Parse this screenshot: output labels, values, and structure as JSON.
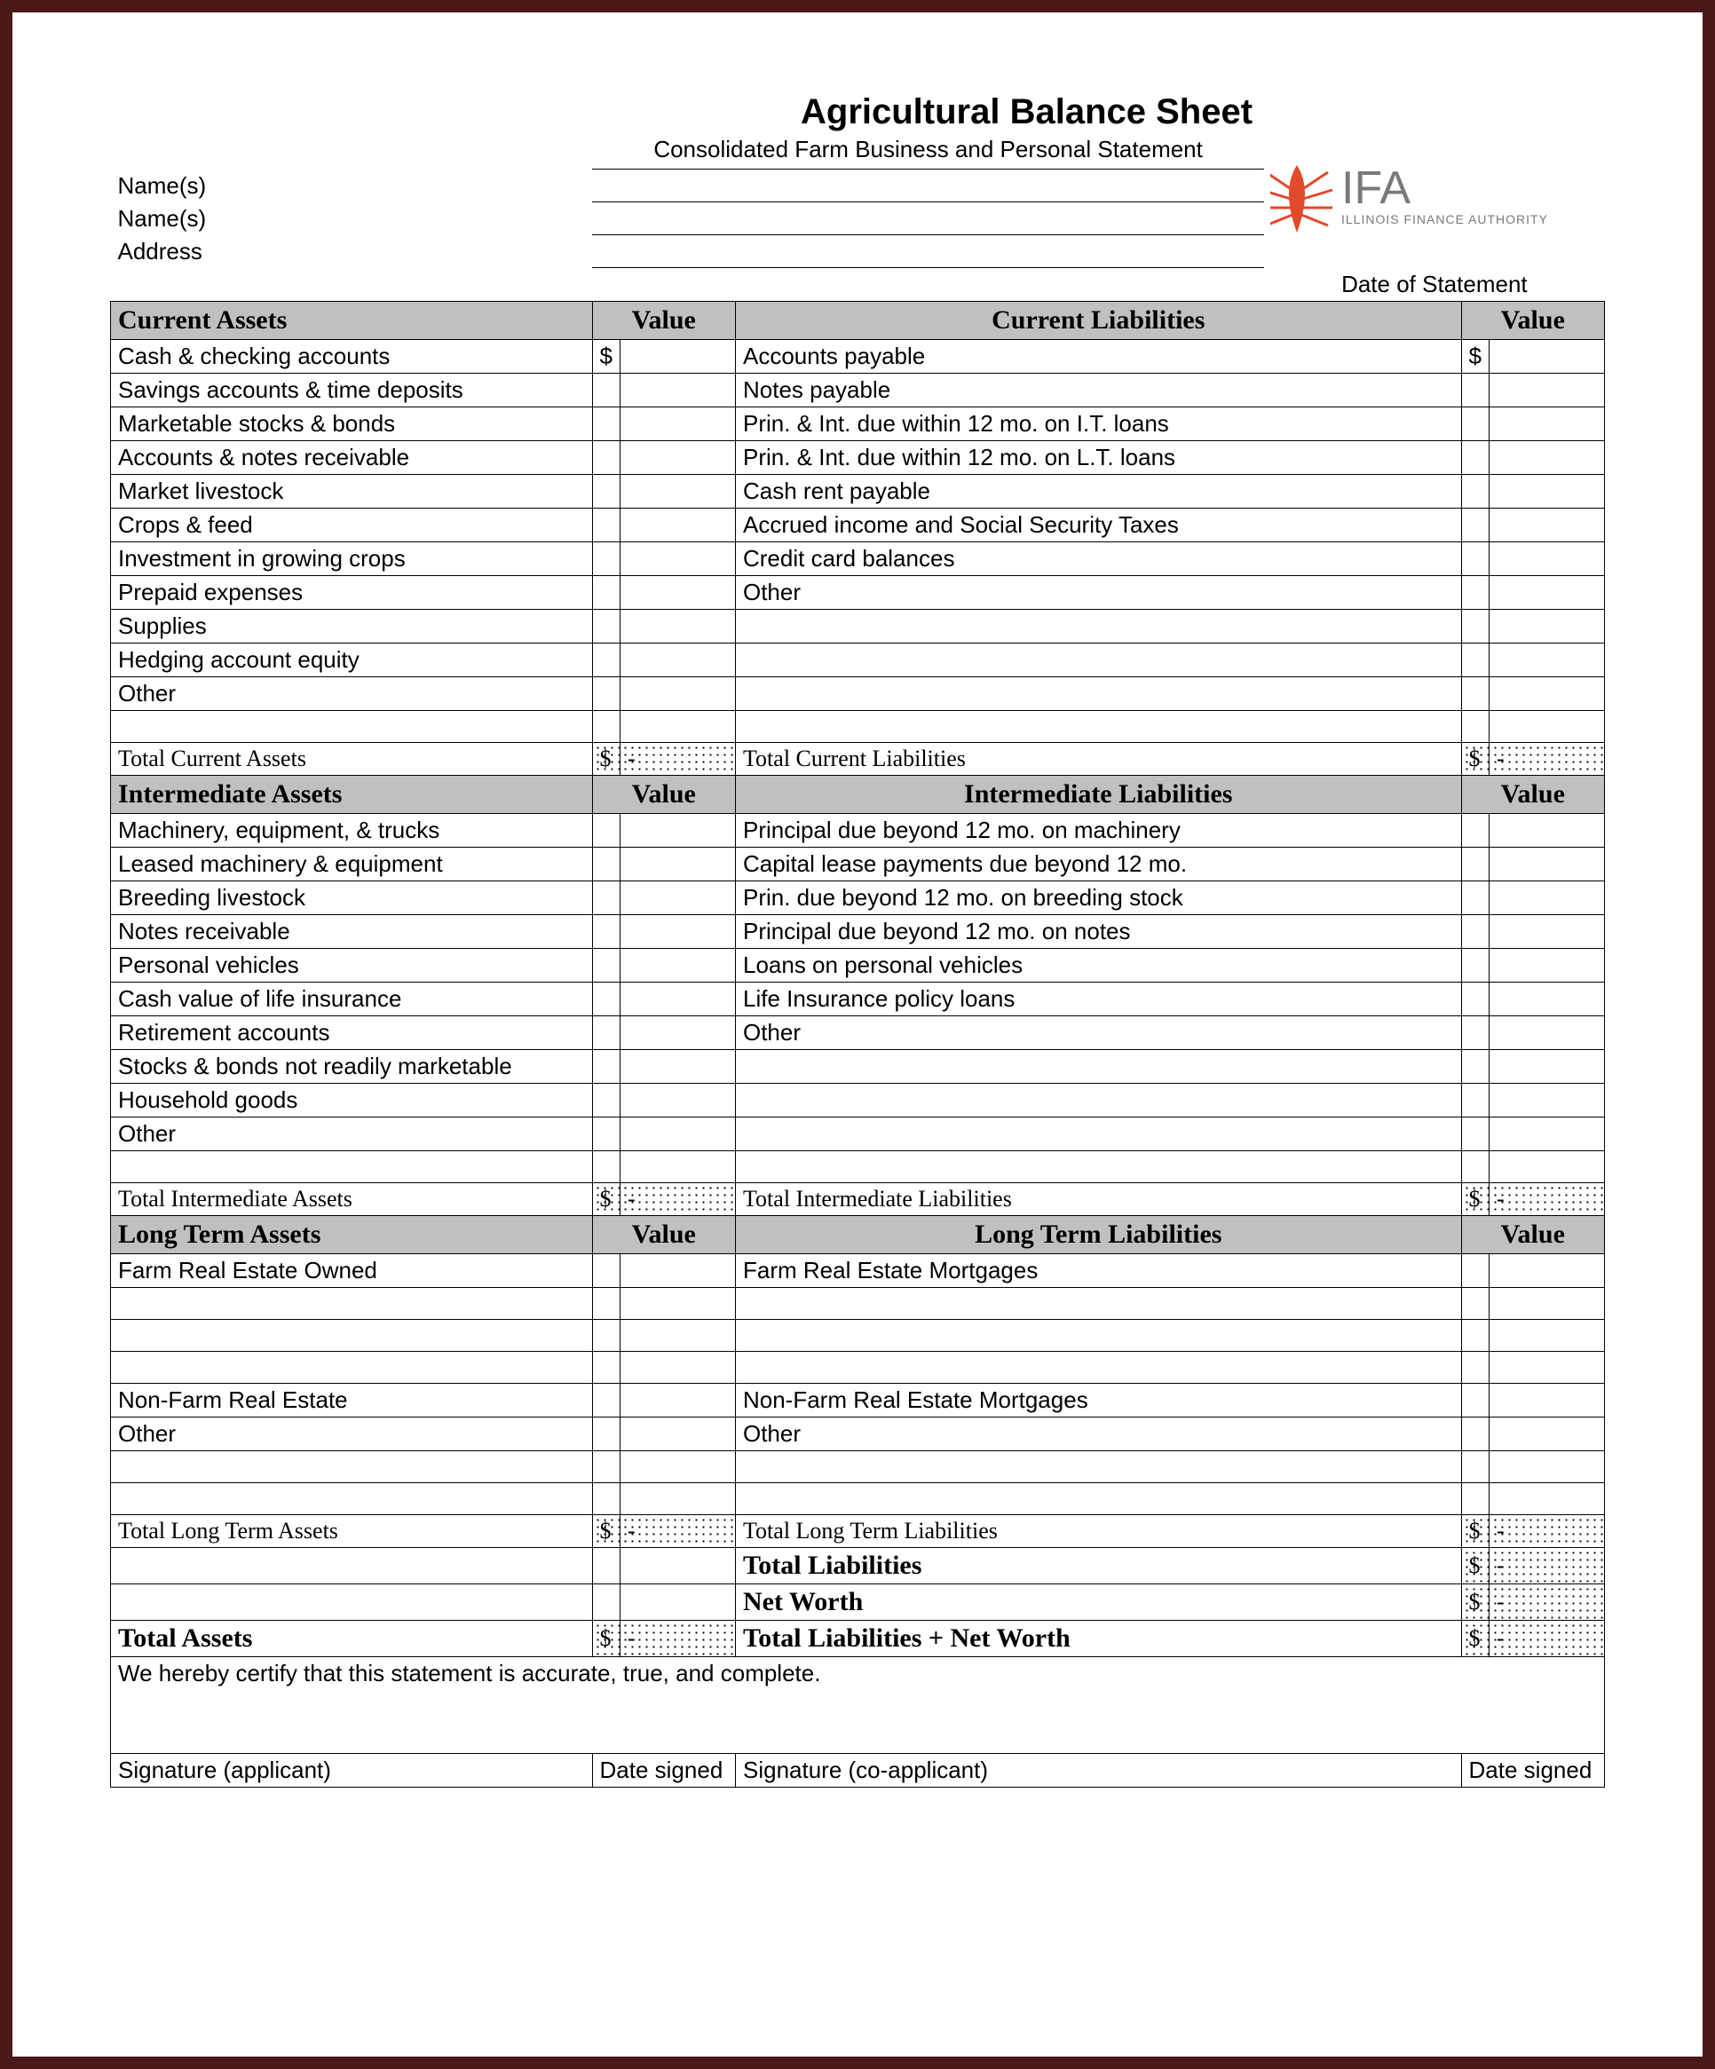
{
  "title": "Agricultural Balance Sheet",
  "subtitle": "Consolidated Farm Business and Personal Statement",
  "header_labels": {
    "names1": "Name(s)",
    "names2": "Name(s)",
    "address": "Address",
    "date_of_statement": "Date of Statement"
  },
  "logo": {
    "text_top": "IFA",
    "text_bottom": "ILLINOIS FINANCE AUTHORITY",
    "color_accent": "#e24a2b",
    "color_text": "#7a7a7a"
  },
  "columns": {
    "assets_header_value": "Value",
    "liab_header_value": "Value"
  },
  "sections": {
    "current": {
      "assets_title": "Current Assets",
      "liab_title": "Current Liabilities",
      "assets": [
        "Cash & checking accounts",
        "Savings accounts & time deposits",
        "Marketable stocks & bonds",
        "Accounts & notes receivable",
        "Market livestock",
        "Crops & feed",
        "Investment in growing crops",
        "Prepaid expenses",
        "Supplies",
        "Hedging account equity",
        "Other",
        ""
      ],
      "liabilities": [
        "Accounts payable",
        "Notes payable",
        "Prin. & Int. due within 12 mo. on I.T. loans",
        "Prin. & Int. due within 12 mo. on L.T. loans",
        "Cash rent payable",
        "Accrued income and Social Security Taxes",
        "Credit card balances",
        "Other",
        "",
        "",
        "",
        ""
      ],
      "assets_total_label": "Total Current Assets",
      "liab_total_label": "Total Current Liabilities",
      "currency": "$",
      "dash": "-"
    },
    "intermediate": {
      "assets_title": "Intermediate Assets",
      "liab_title": "Intermediate Liabilities",
      "assets": [
        "Machinery, equipment, & trucks",
        "Leased machinery & equipment",
        "Breeding livestock",
        "Notes receivable",
        "Personal vehicles",
        "Cash value of life insurance",
        "Retirement accounts",
        "Stocks & bonds not readily marketable",
        "Household goods",
        "Other",
        ""
      ],
      "liabilities": [
        "Principal due beyond 12 mo. on machinery",
        "Capital lease payments due beyond 12 mo.",
        "Prin. due beyond 12 mo. on breeding stock",
        "Principal due beyond 12 mo. on notes",
        "Loans on personal vehicles",
        "Life Insurance policy loans",
        "Other",
        "",
        "",
        "",
        ""
      ],
      "assets_total_label": "Total Intermediate Assets",
      "liab_total_label": "Total Intermediate Liabilities",
      "currency": "$",
      "dash": "-"
    },
    "longterm": {
      "assets_title": "Long Term Assets",
      "liab_title": "Long Term Liabilities",
      "assets": [
        "Farm Real Estate Owned",
        "",
        "",
        "",
        "Non-Farm Real Estate",
        "Other",
        "",
        ""
      ],
      "liabilities": [
        "Farm Real Estate Mortgages",
        "",
        "",
        "",
        "Non-Farm Real Estate Mortgages",
        "Other",
        "",
        ""
      ],
      "assets_total_label": "Total Long Term Assets",
      "liab_total_label": "Total Long Term Liabilities",
      "currency": "$",
      "dash": "-"
    }
  },
  "grand_totals": {
    "total_liabilities": "Total Liabilities",
    "net_worth": "Net Worth",
    "total_assets": "Total  Assets",
    "total_liab_net_worth": "Total Liabilities + Net Worth",
    "currency": "$",
    "dash": "-"
  },
  "certification": "We hereby certify that this statement is accurate, true, and complete.",
  "signatures": {
    "sig_applicant": "Signature (applicant)",
    "date_signed1": "Date signed",
    "sig_coapplicant": "Signature (co-applicant)",
    "date_signed2": "Date signed"
  },
  "styling": {
    "frame_border_color": "#4a1818",
    "section_header_bg": "#c0c0c0",
    "logo_accent": "#e24a2b",
    "font_body": "Arial",
    "font_headers": "Times New Roman",
    "title_fontsize": 40,
    "section_header_fontsize": 30,
    "body_fontsize": 26
  }
}
